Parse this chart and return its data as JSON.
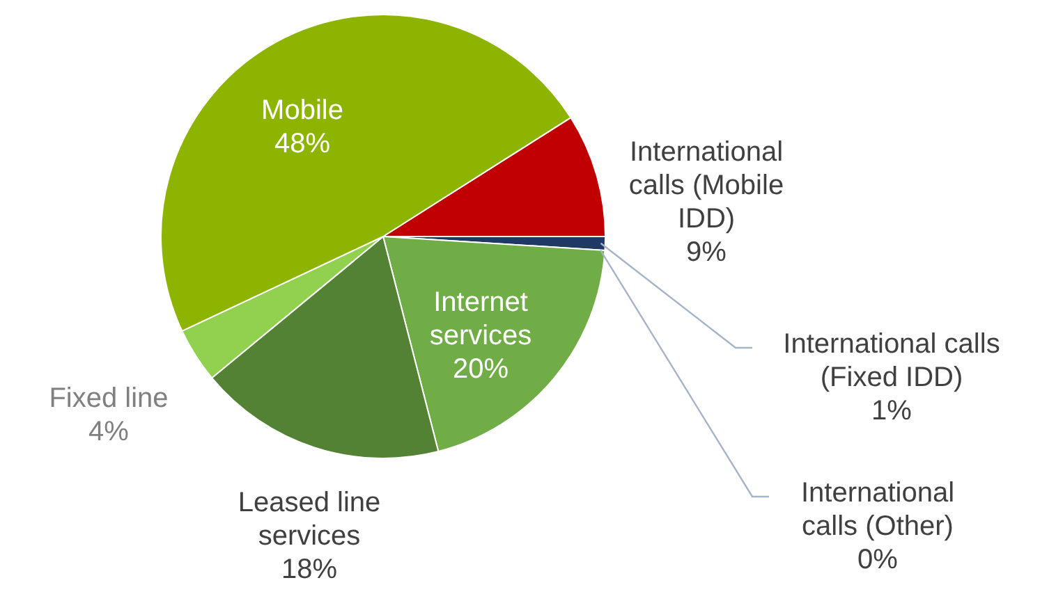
{
  "chart_data": {
    "type": "pie",
    "categories": [
      "International calls (Mobile IDD)",
      "International calls (Fixed IDD)",
      "International calls (Other)",
      "Internet services",
      "Leased line services",
      "Fixed line",
      "Mobile"
    ],
    "values": [
      9,
      1,
      0,
      20,
      18,
      4,
      48
    ],
    "value_labels": [
      "9%",
      "1%",
      "0%",
      "20%",
      "18%",
      "4%",
      "48%"
    ],
    "colors": [
      "#c00000",
      "#1f3864",
      "#b4c7e7",
      "#70ad47",
      "#548235",
      "#92d050",
      "#8cb400"
    ],
    "legend": false
  }
}
